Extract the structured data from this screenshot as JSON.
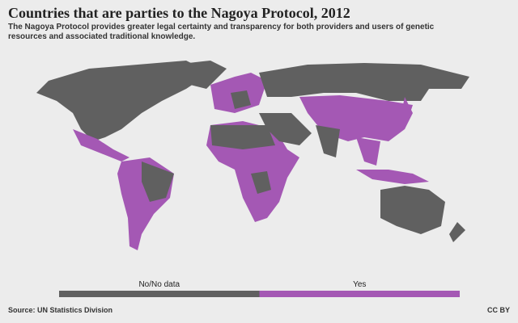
{
  "header": {
    "title": "Countries that are parties to the Nagoya Protocol, 2012",
    "subtitle": "The Nagoya Protocol provides greater legal certainty and transparency for both providers and users of genetic resources and associated traditional knowledge."
  },
  "legend": {
    "items": [
      {
        "label": "No/No data",
        "color": "#606060"
      },
      {
        "label": "Yes",
        "color": "#a458b4"
      }
    ]
  },
  "footer": {
    "source": "Source: UN Statistics Division",
    "license": "CC BY"
  }
}
